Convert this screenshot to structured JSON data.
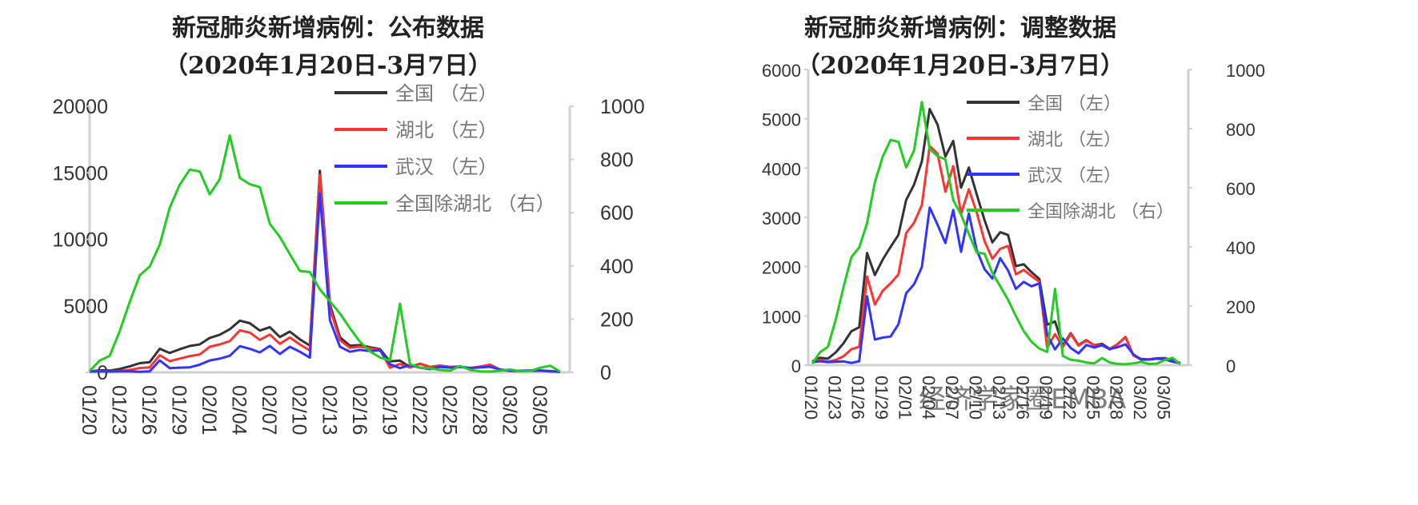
{
  "charts": [
    {
      "id": "published",
      "title_line1": "新冠肺炎新增病例：公布数据",
      "title_line2": "（2020年1月20日-3月7日）",
      "left_axis": {
        "min": 0,
        "max": 20000,
        "ticks": [
          "0",
          "5000",
          "10000",
          "15000",
          "20000"
        ]
      },
      "right_axis": {
        "min": 0,
        "max": 1000,
        "ticks": [
          "0",
          "200",
          "400",
          "600",
          "800",
          "1000"
        ]
      },
      "x_tick_labels": [
        "01/20",
        "01/23",
        "01/26",
        "01/29",
        "02/01",
        "02/04",
        "02/07",
        "02/10",
        "02/13",
        "02/16",
        "02/19",
        "02/22",
        "02/25",
        "02/28",
        "03/02",
        "03/05"
      ],
      "legend": [
        "全国 （左）",
        "湖北 （左）",
        "武汉 （左）",
        "全国除湖北 （右）"
      ]
    },
    {
      "id": "adjusted",
      "title_line1": "新冠肺炎新增病例：调整数据",
      "title_line2": "（2020年1月20日-3月7日）",
      "left_axis": {
        "min": 0,
        "max": 6000,
        "ticks": [
          "0",
          "1000",
          "2000",
          "3000",
          "4000",
          "5000",
          "6000"
        ]
      },
      "right_axis": {
        "min": 0,
        "max": 1000,
        "ticks": [
          "0",
          "200",
          "400",
          "600",
          "800",
          "1000"
        ]
      },
      "x_tick_labels": [
        "01/20",
        "01/23",
        "01/26",
        "01/29",
        "02/01",
        "02/04",
        "02/07",
        "02/10",
        "02/13",
        "02/16",
        "02/19",
        "02/22",
        "02/25",
        "02/28",
        "03/02",
        "03/05"
      ],
      "legend": [
        "全国 （左）",
        "湖北 （左）",
        "武汉 （左）",
        "全国除湖北 （右）"
      ]
    }
  ],
  "watermark": "经济学家圈EMBA",
  "colors": {
    "national": "#333333",
    "hubei": "#ff3333",
    "wuhan": "#3333ff",
    "ex_hubei": "#22cc22",
    "axis": "#d0d0d0",
    "text": "#333333"
  },
  "chart_data": [
    {
      "type": "line",
      "title": "新冠肺炎新增病例：公布数据（2020年1月20日-3月7日）",
      "xlabel": "",
      "ylabel": "",
      "ylim": [
        0,
        20000
      ],
      "y2lim": [
        0,
        1000
      ],
      "legend_position": "top-right",
      "x": [
        "01/20",
        "01/21",
        "01/22",
        "01/23",
        "01/24",
        "01/25",
        "01/26",
        "01/27",
        "01/28",
        "01/29",
        "01/30",
        "01/31",
        "02/01",
        "02/02",
        "02/03",
        "02/04",
        "02/05",
        "02/06",
        "02/07",
        "02/08",
        "02/09",
        "02/10",
        "02/11",
        "02/12",
        "02/13",
        "02/14",
        "02/15",
        "02/16",
        "02/17",
        "02/18",
        "02/19",
        "02/20",
        "02/21",
        "02/22",
        "02/23",
        "02/24",
        "02/25",
        "02/26",
        "02/27",
        "02/28",
        "02/29",
        "03/01",
        "03/02",
        "03/03",
        "03/04",
        "03/05",
        "03/06",
        "03/07"
      ],
      "series": [
        {
          "name": "全国（左）",
          "axis": "left",
          "values": [
            77,
            149,
            131,
            259,
            444,
            688,
            769,
            1771,
            1459,
            1737,
            1982,
            2102,
            2590,
            2829,
            3235,
            3887,
            3694,
            3143,
            3399,
            2656,
            3062,
            2478,
            2015,
            15152,
            5090,
            2641,
            2009,
            2048,
            1886,
            1749,
            820,
            889,
            397,
            648,
            409,
            508,
            406,
            433,
            327,
            427,
            573,
            202,
            125,
            119,
            139,
            143,
            99,
            44
          ]
        },
        {
          "name": "湖北（左）",
          "axis": "left",
          "values": [
            72,
            105,
            69,
            105,
            180,
            323,
            371,
            1291,
            840,
            1032,
            1220,
            1347,
            1921,
            2103,
            2345,
            3156,
            2987,
            2447,
            2841,
            2147,
            2618,
            2097,
            1638,
            14840,
            4823,
            2420,
            1843,
            1933,
            1807,
            1693,
            349,
            631,
            366,
            630,
            398,
            499,
            401,
            409,
            318,
            423,
            570,
            196,
            114,
            115,
            134,
            126,
            74,
            41
          ]
        },
        {
          "name": "武汉（左）",
          "axis": "left",
          "values": [
            60,
            80,
            60,
            70,
            77,
            46,
            80,
            892,
            315,
            356,
            378,
            576,
            894,
            1033,
            1242,
            1967,
            1766,
            1501,
            1985,
            1379,
            1921,
            1552,
            1104,
            13436,
            3910,
            1923,
            1548,
            1690,
            1600,
            1660,
            615,
            319,
            541,
            348,
            240,
            410,
            357,
            403,
            331,
            365,
            423,
            220,
            112,
            114,
            131,
            120,
            70,
            40
          ]
        },
        {
          "name": "全国除湖北（右）",
          "axis": "right",
          "values": [
            5,
            44,
            62,
            154,
            264,
            365,
            398,
            480,
            619,
            705,
            762,
            755,
            669,
            726,
            890,
            731,
            707,
            696,
            558,
            509,
            444,
            381,
            377,
            312,
            267,
            221,
            166,
            115,
            79,
            56,
            45,
            258,
            31,
            18,
            15,
            9,
            6,
            24,
            9,
            4,
            3,
            6,
            11,
            4,
            5,
            17,
            25,
            3
          ]
        }
      ]
    },
    {
      "type": "line",
      "title": "新冠肺炎新增病例：调整数据（2020年1月20日-3月7日）",
      "xlabel": "",
      "ylabel": "",
      "ylim": [
        0,
        6000
      ],
      "y2lim": [
        0,
        1000
      ],
      "legend_position": "top-right",
      "x": [
        "01/20",
        "01/21",
        "01/22",
        "01/23",
        "01/24",
        "01/25",
        "01/26",
        "01/27",
        "01/28",
        "01/29",
        "01/30",
        "01/31",
        "02/01",
        "02/02",
        "02/03",
        "02/04",
        "02/05",
        "02/06",
        "02/07",
        "02/08",
        "02/09",
        "02/10",
        "02/11",
        "02/12",
        "02/13",
        "02/14",
        "02/15",
        "02/16",
        "02/17",
        "02/18",
        "02/19",
        "02/20",
        "02/21",
        "02/22",
        "02/23",
        "02/24",
        "02/25",
        "02/26",
        "02/27",
        "02/28",
        "02/29",
        "03/01",
        "03/02",
        "03/03",
        "03/04",
        "03/05",
        "03/06",
        "03/07"
      ],
      "series": [
        {
          "name": "全国（左）",
          "axis": "left",
          "values": [
            77,
            149,
            131,
            259,
            444,
            688,
            769,
            2277,
            1829,
            2142,
            2400,
            2641,
            3354,
            3661,
            4133,
            5197,
            4883,
            4233,
            4551,
            3601,
            4010,
            3468,
            2945,
            2490,
            2699,
            2641,
            2009,
            2048,
            1886,
            1749,
            820,
            889,
            397,
            648,
            409,
            508,
            406,
            433,
            327,
            427,
            573,
            202,
            125,
            119,
            139,
            143,
            99,
            44
          ]
        },
        {
          "name": "湖北（左）",
          "axis": "left",
          "values": [
            72,
            105,
            69,
            105,
            180,
            323,
            371,
            1800,
            1230,
            1510,
            1660,
            1840,
            2680,
            2890,
            3250,
            4450,
            4290,
            3520,
            4040,
            3070,
            3570,
            3100,
            2520,
            2160,
            2360,
            2420,
            1843,
            1933,
            1807,
            1693,
            349,
            631,
            366,
            630,
            398,
            499,
            401,
            409,
            318,
            423,
            570,
            196,
            114,
            115,
            134,
            126,
            74,
            41
          ]
        },
        {
          "name": "武汉（左）",
          "axis": "left",
          "values": [
            60,
            80,
            60,
            70,
            77,
            46,
            80,
            1400,
            520,
            560,
            580,
            830,
            1460,
            1640,
            1990,
            3200,
            2850,
            2480,
            3150,
            2300,
            3080,
            2340,
            1950,
            1760,
            2170,
            1923,
            1548,
            1690,
            1600,
            1660,
            615,
            319,
            541,
            348,
            240,
            410,
            357,
            403,
            331,
            365,
            423,
            220,
            112,
            114,
            131,
            120,
            70,
            40
          ]
        },
        {
          "name": "全国除湖北（右）",
          "axis": "right",
          "values": [
            5,
            44,
            62,
            154,
            264,
            365,
            398,
            480,
            619,
            705,
            762,
            755,
            669,
            726,
            890,
            731,
            707,
            696,
            558,
            509,
            444,
            381,
            377,
            312,
            267,
            221,
            166,
            115,
            79,
            56,
            45,
            258,
            31,
            18,
            15,
            9,
            6,
            24,
            9,
            4,
            3,
            6,
            11,
            4,
            5,
            17,
            25,
            3
          ]
        }
      ]
    }
  ]
}
